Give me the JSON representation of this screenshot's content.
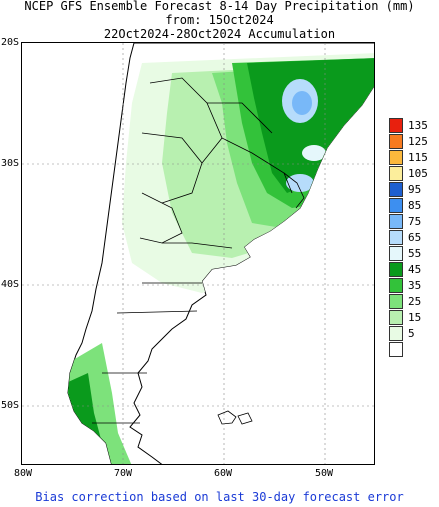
{
  "title": {
    "line1": "NCEP GFS Ensemble Forecast 8-14 Day Precipitation (mm)",
    "line2": "from: 15Oct2024",
    "line3": "22Oct2024-28Oct2024 Accumulation"
  },
  "axes": {
    "lat_labels": [
      "20S",
      "30S",
      "40S",
      "50S"
    ],
    "lon_labels": [
      "80W",
      "70W",
      "60W",
      "50W"
    ]
  },
  "legend": [
    {
      "value": "135",
      "color": "#e8200e"
    },
    {
      "value": "125",
      "color": "#f77a1f"
    },
    {
      "value": "115",
      "color": "#fbb83c"
    },
    {
      "value": "105",
      "color": "#fcee9c"
    },
    {
      "value": "95",
      "color": "#1e5fd0"
    },
    {
      "value": "85",
      "color": "#3d8ff0"
    },
    {
      "value": "75",
      "color": "#78b8f8"
    },
    {
      "value": "65",
      "color": "#b6dcfb"
    },
    {
      "value": "55",
      "color": "#e5f7fb"
    },
    {
      "value": "45",
      "color": "#0a9a1c"
    },
    {
      "value": "35",
      "color": "#33c23a"
    },
    {
      "value": "25",
      "color": "#7de27b"
    },
    {
      "value": "15",
      "color": "#b8f0b0"
    },
    {
      "value": "5",
      "color": "#e8fbe4"
    },
    {
      "value": "",
      "color": "#ffffff"
    }
  ],
  "footer": "Bias correction based on last 30-day forecast error"
}
